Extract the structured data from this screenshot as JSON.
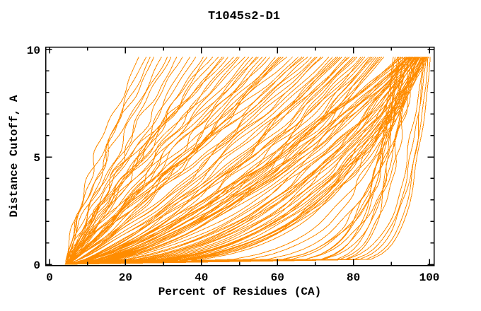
{
  "chart_data": {
    "type": "line",
    "title": "T1045s2-D1",
    "xlabel": "Percent of Residues (CA)",
    "ylabel": "Distance Cutoff, A",
    "xlim": [
      0,
      101
    ],
    "ylim": [
      0,
      10.1
    ],
    "x_major_ticks": [
      0,
      20,
      40,
      60,
      80,
      100
    ],
    "x_minor_ticks": [
      10,
      30,
      50,
      70,
      90
    ],
    "y_major_ticks": [
      0,
      5,
      10
    ],
    "y_minor_ticks": [
      1,
      2,
      3,
      4,
      6,
      7,
      8,
      9
    ],
    "grid": false,
    "legend": "none",
    "background": "#ffffff",
    "axis_color": "#000000",
    "curve_color": "#ff8c00",
    "y_data_max": 9.65,
    "curve_param_format": [
      "x_start_pct",
      "x_end_pct_at_top",
      "shape_exponent",
      "wiggle_amp_pct",
      "wiggle_freq",
      "wiggle_phase"
    ],
    "curves": [
      [
        4.2,
        99.6,
        0.05,
        0.5,
        1.3,
        0.4
      ],
      [
        4.5,
        99.2,
        0.055,
        0.6,
        1.7,
        2.2
      ],
      [
        4.0,
        98.7,
        0.058,
        0.4,
        2.1,
        3.9
      ],
      [
        4.6,
        100.2,
        0.048,
        0.5,
        1.1,
        1.2
      ],
      [
        4.3,
        98.3,
        0.064,
        0.7,
        1.5,
        5.3
      ],
      [
        4.4,
        93.0,
        0.05,
        0.8,
        1.6,
        0.9
      ],
      [
        4.7,
        94.5,
        0.06,
        0.9,
        2.0,
        2.8
      ],
      [
        4.1,
        92.0,
        0.055,
        0.7,
        1.3,
        4.6
      ],
      [
        5.0,
        95.5,
        0.08,
        1.0,
        1.8,
        1.6
      ],
      [
        4.3,
        96.0,
        0.1,
        1.1,
        2.3,
        3.2
      ],
      [
        4.8,
        91.5,
        0.07,
        0.8,
        1.4,
        5.8
      ],
      [
        4.2,
        94.0,
        0.12,
        1.2,
        2.6,
        0.2
      ],
      [
        5.2,
        96.5,
        0.15,
        1.0,
        1.9,
        2.5
      ],
      [
        4.6,
        92.5,
        0.09,
        0.9,
        1.2,
        4.1
      ],
      [
        4.9,
        95.0,
        0.17,
        1.3,
        2.2,
        5.0
      ],
      [
        4.4,
        97.0,
        0.2,
        1.1,
        1.7,
        1.9
      ],
      [
        5.1,
        93.5,
        0.11,
        0.8,
        2.4,
        3.6
      ],
      [
        4.3,
        90.5,
        0.065,
        0.7,
        1.5,
        0.6
      ],
      [
        4.7,
        96.8,
        0.13,
        1.2,
        2.0,
        4.4
      ],
      [
        4.5,
        91.0,
        0.085,
        0.9,
        1.6,
        2.0
      ],
      [
        4.5,
        98.5,
        0.3,
        1.4,
        2.2,
        0.0
      ],
      [
        4.8,
        96.0,
        0.35,
        1.2,
        1.8,
        0.7
      ],
      [
        4.2,
        99.0,
        0.28,
        1.5,
        2.5,
        1.4
      ],
      [
        5.0,
        94.0,
        0.4,
        1.3,
        1.6,
        2.1
      ],
      [
        4.6,
        97.5,
        0.33,
        1.1,
        2.0,
        2.8
      ],
      [
        4.3,
        95.0,
        0.45,
        1.4,
        2.4,
        3.5
      ],
      [
        4.9,
        98.0,
        0.27,
        1.2,
        1.5,
        4.2
      ],
      [
        4.4,
        96.5,
        0.5,
        1.5,
        2.1,
        4.9
      ],
      [
        5.1,
        99.5,
        0.31,
        1.3,
        1.9,
        5.6
      ],
      [
        4.7,
        93.5,
        0.55,
        1.2,
        2.3,
        6.1
      ],
      [
        4.2,
        97.0,
        0.38,
        1.4,
        1.7,
        0.35
      ],
      [
        4.8,
        95.5,
        0.6,
        1.1,
        2.6,
        1.05
      ],
      [
        4.5,
        98.8,
        0.26,
        1.3,
        1.4,
        1.75
      ],
      [
        5.2,
        94.5,
        0.65,
        1.5,
        2.2,
        2.45
      ],
      [
        4.3,
        96.2,
        0.42,
        1.2,
        1.8,
        3.15
      ],
      [
        4.6,
        99.2,
        0.36,
        1.0,
        2.0,
        3.85
      ],
      [
        4.9,
        92.5,
        0.7,
        1.4,
        2.4,
        4.55
      ],
      [
        4.4,
        97.8,
        0.29,
        1.2,
        1.6,
        5.25
      ],
      [
        5.0,
        95.8,
        0.48,
        1.3,
        2.1,
        5.95
      ],
      [
        4.7,
        98.2,
        0.34,
        1.1,
        1.9,
        0.15
      ],
      [
        4.3,
        93.0,
        0.75,
        1.5,
        2.5,
        0.85
      ],
      [
        4.8,
        96.8,
        0.44,
        1.2,
        1.7,
        1.55
      ],
      [
        4.5,
        99.8,
        0.32,
        1.0,
        2.2,
        2.25
      ],
      [
        5.1,
        94.8,
        0.58,
        1.4,
        1.5,
        2.95
      ],
      [
        4.2,
        97.2,
        0.39,
        1.3,
        2.3,
        3.65
      ],
      [
        4.6,
        95.2,
        0.52,
        1.1,
        1.8,
        4.35
      ],
      [
        4.9,
        98.6,
        0.3,
        1.2,
        2.0,
        5.05
      ],
      [
        4.4,
        92.0,
        0.68,
        1.5,
        2.6,
        5.75
      ],
      [
        5.0,
        96.4,
        0.41,
        1.3,
        1.6,
        6.25
      ],
      [
        4.7,
        99.4,
        0.35,
        1.1,
        2.1,
        0.55
      ],
      [
        4.3,
        94.2,
        0.62,
        1.4,
        1.9,
        1.25
      ],
      [
        4.8,
        97.6,
        0.37,
        1.2,
        2.4,
        1.95
      ],
      [
        4.5,
        95.6,
        0.55,
        1.0,
        1.7,
        2.65
      ],
      [
        5.2,
        98.4,
        0.33,
        1.3,
        2.2,
        3.35
      ],
      [
        4.2,
        93.8,
        0.72,
        1.5,
        1.5,
        4.05
      ],
      [
        4.6,
        96.6,
        0.46,
        1.2,
        2.0,
        4.75
      ],
      [
        4.9,
        99.0,
        0.29,
        1.1,
        1.8,
        5.45
      ],
      [
        4.4,
        95.4,
        0.6,
        1.4,
        2.5,
        6.15
      ],
      [
        5.0,
        97.4,
        0.43,
        1.2,
        1.6,
        0.25
      ],
      [
        4.7,
        94.6,
        0.66,
        1.3,
        2.1,
        0.95
      ],
      [
        4.5,
        85.0,
        0.55,
        1.6,
        1.8,
        0.5
      ],
      [
        4.8,
        78.0,
        0.7,
        1.8,
        2.2,
        1.2
      ],
      [
        4.2,
        88.0,
        0.5,
        1.5,
        1.5,
        1.9
      ],
      [
        5.0,
        72.0,
        0.85,
        1.7,
        2.4,
        2.6
      ],
      [
        4.6,
        82.5,
        0.62,
        1.6,
        1.9,
        3.3
      ],
      [
        4.3,
        75.5,
        0.78,
        1.8,
        2.1,
        4.0
      ],
      [
        4.9,
        86.5,
        0.58,
        1.5,
        1.6,
        4.7
      ],
      [
        4.4,
        69.0,
        0.92,
        1.7,
        2.3,
        5.4
      ],
      [
        5.1,
        80.0,
        0.68,
        1.6,
        2.0,
        6.1
      ],
      [
        4.7,
        84.0,
        0.6,
        1.8,
        1.7,
        0.3
      ],
      [
        4.2,
        66.5,
        1.0,
        1.5,
        2.5,
        1.0
      ],
      [
        4.8,
        76.5,
        0.75,
        1.7,
        1.8,
        1.7
      ],
      [
        4.5,
        87.0,
        0.53,
        1.6,
        2.2,
        2.4
      ],
      [
        5.2,
        70.5,
        0.88,
        1.5,
        1.9,
        3.1
      ],
      [
        4.3,
        81.0,
        0.66,
        1.8,
        2.4,
        3.8
      ],
      [
        4.6,
        73.5,
        0.82,
        1.6,
        1.6,
        4.5
      ],
      [
        4.9,
        85.5,
        0.57,
        1.5,
        2.1,
        5.2
      ],
      [
        4.4,
        64.0,
        1.05,
        1.7,
        2.3,
        5.9
      ],
      [
        5.0,
        79.0,
        0.71,
        1.6,
        1.8,
        0.15
      ],
      [
        4.7,
        83.0,
        0.63,
        1.8,
        2.0,
        0.85
      ],
      [
        4.3,
        68.0,
        0.96,
        1.5,
        2.5,
        1.55
      ],
      [
        4.8,
        77.0,
        0.73,
        1.7,
        1.7,
        2.25
      ],
      [
        4.5,
        86.0,
        0.54,
        1.6,
        2.2,
        2.95
      ],
      [
        5.1,
        71.5,
        0.86,
        1.5,
        1.9,
        3.65
      ],
      [
        4.2,
        82.0,
        0.64,
        1.8,
        2.4,
        4.35
      ],
      [
        4.6,
        74.5,
        0.8,
        1.6,
        1.6,
        5.05
      ],
      [
        4.9,
        87.5,
        0.52,
        1.5,
        2.1,
        5.75
      ],
      [
        4.4,
        65.5,
        1.02,
        1.7,
        2.3,
        0.45
      ],
      [
        5.0,
        80.5,
        0.69,
        1.6,
        1.8,
        1.15
      ],
      [
        4.7,
        84.5,
        0.61,
        1.8,
        2.0,
        1.85
      ],
      [
        4.3,
        67.0,
        0.98,
        1.5,
        2.5,
        2.55
      ],
      [
        4.8,
        78.5,
        0.72,
        1.7,
        1.7,
        3.25
      ],
      [
        4.5,
        62.5,
        1.08,
        1.6,
        2.2,
        3.95
      ],
      [
        5.2,
        76.0,
        0.76,
        1.5,
        1.9,
        4.65
      ],
      [
        4.3,
        70.0,
        0.9,
        1.8,
        2.4,
        5.35
      ],
      [
        4.6,
        58.0,
        0.95,
        1.9,
        2.0,
        0.6
      ],
      [
        4.9,
        50.0,
        1.1,
        1.7,
        2.3,
        1.3
      ],
      [
        4.4,
        60.5,
        0.9,
        1.8,
        1.7,
        2.0
      ],
      [
        5.0,
        46.0,
        1.2,
        1.6,
        2.1,
        2.7
      ],
      [
        4.7,
        55.0,
        1.0,
        1.9,
        2.4,
        3.4
      ],
      [
        4.3,
        52.5,
        1.05,
        1.7,
        1.8,
        4.1
      ],
      [
        4.8,
        61.5,
        0.88,
        1.8,
        2.2,
        4.8
      ],
      [
        4.5,
        44.5,
        1.25,
        1.6,
        1.9,
        5.5
      ],
      [
        5.1,
        57.0,
        0.97,
        1.9,
        2.5,
        6.2
      ],
      [
        4.6,
        48.5,
        1.15,
        1.7,
        1.6,
        0.4
      ],
      [
        4.2,
        59.5,
        0.92,
        1.8,
        2.1,
        1.1
      ],
      [
        4.9,
        53.5,
        1.03,
        1.6,
        2.3,
        1.8
      ],
      [
        4.4,
        47.0,
        1.18,
        1.9,
        1.8,
        2.5
      ],
      [
        5.0,
        56.0,
        0.99,
        1.7,
        2.0,
        3.2
      ],
      [
        4.7,
        43.0,
        1.28,
        1.8,
        2.4,
        3.9
      ],
      [
        4.3,
        54.5,
        1.01,
        1.6,
        1.7,
        4.6
      ],
      [
        4.8,
        49.5,
        1.12,
        1.9,
        2.2,
        5.3
      ],
      [
        4.5,
        61.0,
        0.89,
        1.7,
        1.9,
        6.0
      ],
      [
        5.2,
        45.5,
        1.22,
        1.8,
        2.5,
        0.2
      ],
      [
        4.4,
        51.5,
        1.07,
        1.6,
        1.8,
        0.9
      ],
      [
        4.6,
        32.0,
        1.1,
        1.5,
        2.0,
        0.7
      ],
      [
        4.3,
        27.5,
        1.25,
        1.4,
        2.3,
        1.5
      ],
      [
        4.9,
        38.5,
        1.0,
        1.6,
        1.7,
        2.3
      ],
      [
        4.5,
        23.5,
        1.35,
        1.3,
        2.1,
        3.1
      ],
      [
        5.0,
        35.0,
        1.05,
        1.5,
        2.4,
        3.9
      ],
      [
        4.4,
        29.5,
        1.2,
        1.4,
        1.8,
        4.7
      ],
      [
        4.7,
        40.5,
        0.95,
        1.6,
        2.2,
        5.5
      ],
      [
        4.2,
        25.5,
        1.3,
        1.3,
        1.9,
        6.3
      ],
      [
        4.8,
        33.5,
        1.08,
        1.5,
        2.5,
        0.35
      ],
      [
        4.5,
        37.0,
        1.02,
        1.4,
        1.6,
        1.05
      ],
      [
        5.1,
        26.5,
        1.28,
        1.3,
        2.1,
        1.75
      ],
      [
        4.3,
        31.0,
        1.15,
        1.5,
        1.8,
        2.45
      ],
      [
        4.6,
        41.5,
        0.93,
        1.6,
        2.3,
        3.15
      ]
    ]
  }
}
